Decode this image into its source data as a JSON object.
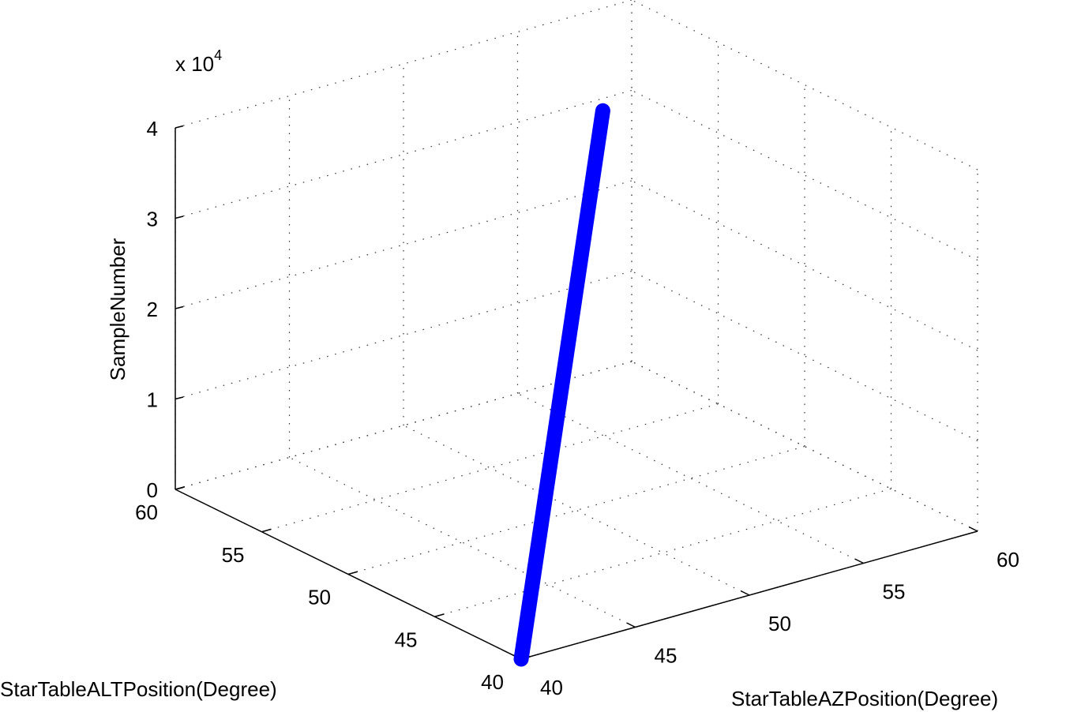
{
  "chart_data": {
    "type": "line3d",
    "title": "",
    "xlabel": "StarTableAZPosition(Degree)",
    "ylabel": "StarTableALTPosition(Degree)",
    "zlabel": "SampleNumber",
    "z_multiplier_label": "x 10",
    "z_multiplier_exp": "4",
    "xlim": [
      40,
      60
    ],
    "ylim": [
      40,
      60
    ],
    "zlim": [
      0,
      40000
    ],
    "x_ticks": [
      "40",
      "45",
      "50",
      "55",
      "60"
    ],
    "y_ticks": [
      "40",
      "45",
      "50",
      "55",
      "60"
    ],
    "z_ticks": [
      "0",
      "1",
      "2",
      "3",
      "4"
    ],
    "grid": true,
    "series": [
      {
        "color": "#0000ff",
        "points": [
          [
            40,
            40,
            0
          ],
          [
            52.9,
            52.3,
            40000
          ]
        ]
      }
    ]
  }
}
